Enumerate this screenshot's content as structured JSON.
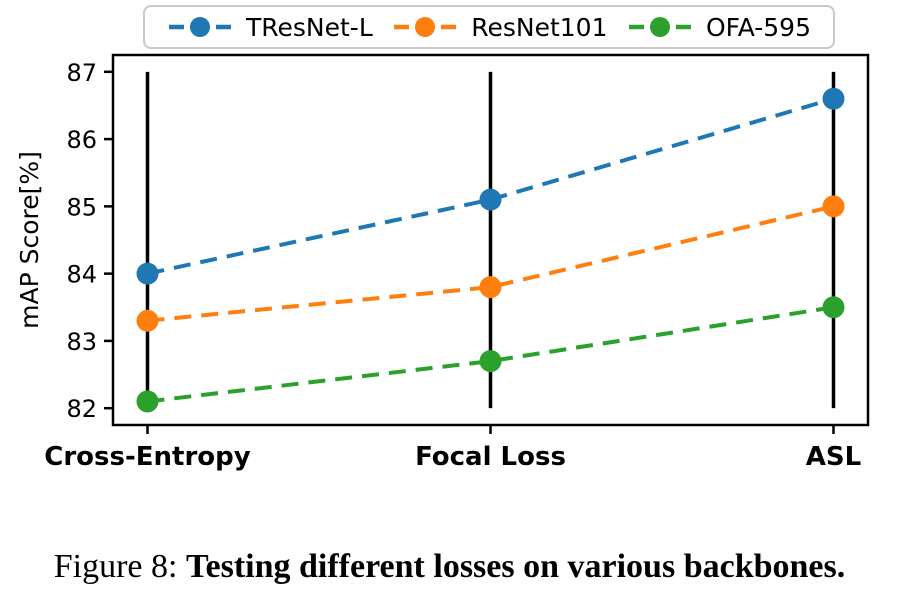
{
  "figure": {
    "caption_prefix": "Figure 8: ",
    "caption_text": "Testing different losses on various backbones."
  },
  "chart_data": {
    "type": "line",
    "categories": [
      "Cross-Entropy",
      "Focal Loss",
      "ASL"
    ],
    "series": [
      {
        "name": "TResNet-L",
        "color": "#1f77b4",
        "values": [
          84.0,
          85.1,
          86.6
        ]
      },
      {
        "name": "ResNet101",
        "color": "#ff7f0e",
        "values": [
          83.3,
          83.8,
          85.0
        ]
      },
      {
        "name": "OFA-595",
        "color": "#2ca02c",
        "values": [
          82.1,
          82.7,
          83.5
        ]
      }
    ],
    "ylabel": "mAP Score[%]",
    "yticks": [
      82,
      83,
      84,
      85,
      86,
      87
    ],
    "ylim": [
      81.75,
      87.25
    ],
    "line_style": "dashed",
    "marker": "circle",
    "marker_radius": 11,
    "vertical_guides": true,
    "guide_color": "#000000",
    "axis_color": "#000000",
    "text_color": "#000000",
    "legend_position": "top",
    "legend_border_color": "#c9c9c9",
    "grid": false
  }
}
